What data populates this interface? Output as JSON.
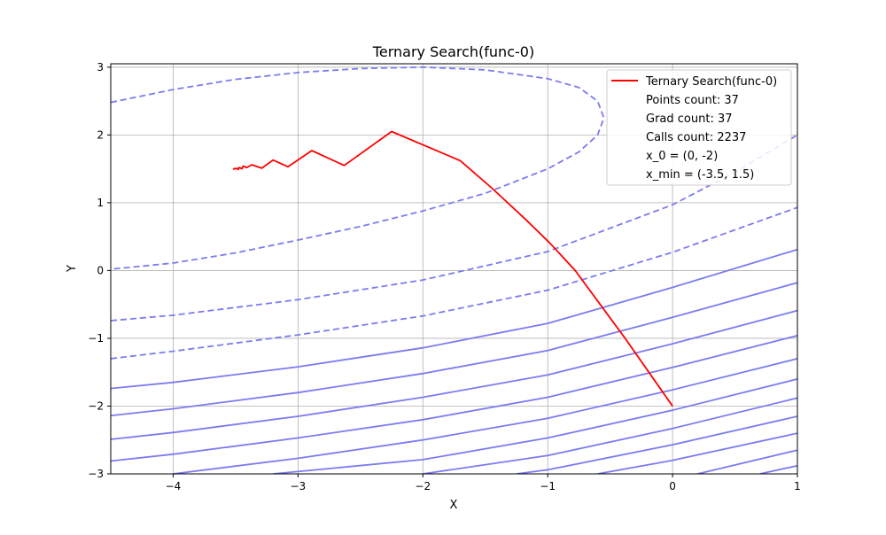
{
  "chart_data": {
    "type": "line",
    "title": "Ternary Search(func-0)",
    "xlabel": "X",
    "ylabel": "Y",
    "xlim": [
      -4.5,
      1
    ],
    "ylim": [
      -3,
      3.05
    ],
    "xticks": [
      -4,
      -3,
      -2,
      -1,
      0,
      1
    ],
    "xtick_labels": [
      "−4",
      "−3",
      "−2",
      "−1",
      "0",
      "1"
    ],
    "yticks": [
      -3,
      -2,
      -1,
      0,
      1,
      2,
      3
    ],
    "ytick_labels": [
      "−3",
      "−2",
      "−1",
      "0",
      "1",
      "2",
      "3"
    ],
    "grid": true,
    "legend_position": "top-right",
    "series": [
      {
        "name": "Ternary Search(func-0)",
        "color": "#ff0000",
        "x": [
          0,
          -0.19,
          -0.38,
          -0.58,
          -0.78,
          -0.98,
          -1.18,
          -1.45,
          -1.7,
          -2.25,
          -2.63,
          -2.89,
          -3.08,
          -3.2,
          -3.29,
          -3.37,
          -3.41,
          -3.44,
          -3.45,
          -3.47,
          -3.48,
          -3.49,
          -3.5,
          -3.51,
          -3.52
        ],
        "y": [
          -2.0,
          -1.5,
          -1.0,
          -0.5,
          0.0,
          0.4,
          0.76,
          1.22,
          1.62,
          2.05,
          1.55,
          1.77,
          1.53,
          1.63,
          1.51,
          1.56,
          1.52,
          1.54,
          1.5,
          1.52,
          1.49,
          1.51,
          1.5,
          1.505,
          1.49
        ]
      }
    ],
    "contours": {
      "color": "#7b7bf2",
      "dashed_levels": [
        {
          "x": [
            -4.5,
            -4.0,
            -3.5,
            -3.0,
            -2.5,
            -2.0,
            -1.5,
            -1.0,
            -0.75,
            -0.6,
            -0.55,
            -0.6,
            -0.75,
            -1.0,
            -1.5,
            -2.0,
            -2.5,
            -3.0,
            -3.5,
            -4.0,
            -4.5
          ],
          "y": [
            2.48,
            2.67,
            2.82,
            2.92,
            2.98,
            3.0,
            2.96,
            2.83,
            2.7,
            2.5,
            2.25,
            2.0,
            1.75,
            1.5,
            1.14,
            0.88,
            0.65,
            0.45,
            0.26,
            0.11,
            0.02
          ]
        },
        {
          "x": [
            -4.5,
            -4.0,
            -3.0,
            -2.0,
            -1.0,
            0.0,
            0.5,
            1.0
          ],
          "y": [
            -0.74,
            -0.66,
            -0.43,
            -0.14,
            0.28,
            0.97,
            1.45,
            2.0
          ]
        },
        {
          "x": [
            -4.5,
            -4.0,
            -3.0,
            -2.0,
            -1.0,
            0.0,
            1.0
          ],
          "y": [
            -1.3,
            -1.19,
            -0.95,
            -0.67,
            -0.29,
            0.27,
            0.93
          ]
        }
      ],
      "solid_levels": [
        {
          "x": [
            -4.5,
            -4.0,
            -3.0,
            -2.0,
            -1.0,
            0.0,
            1.0
          ],
          "y": [
            -1.74,
            -1.65,
            -1.42,
            -1.14,
            -0.78,
            -0.25,
            0.31
          ]
        },
        {
          "x": [
            -4.5,
            -4.0,
            -3.0,
            -2.0,
            -1.0,
            0.0,
            1.0
          ],
          "y": [
            -2.14,
            -2.04,
            -1.8,
            -1.52,
            -1.18,
            -0.69,
            -0.18
          ]
        },
        {
          "x": [
            -4.5,
            -4.0,
            -3.0,
            -2.0,
            -1.0,
            0.0,
            1.0
          ],
          "y": [
            -2.49,
            -2.39,
            -2.15,
            -1.87,
            -1.54,
            -1.08,
            -0.59
          ]
        },
        {
          "x": [
            -4.5,
            -4.0,
            -3.0,
            -2.0,
            -1.0,
            0.0,
            1.0
          ],
          "y": [
            -2.81,
            -2.71,
            -2.47,
            -2.2,
            -1.87,
            -1.43,
            -0.96
          ]
        },
        {
          "x": [
            -4.0,
            -3.0,
            -2.0,
            -1.0,
            0.0,
            1.0
          ],
          "y": [
            -3.0,
            -2.77,
            -2.5,
            -2.18,
            -1.76,
            -1.3
          ]
        },
        {
          "x": [
            -3.2,
            -2.0,
            -1.0,
            0.0,
            1.0
          ],
          "y": [
            -3.0,
            -2.79,
            -2.47,
            -2.06,
            -1.6
          ]
        },
        {
          "x": [
            -2.0,
            -1.0,
            0.0,
            1.0
          ],
          "y": [
            -3.0,
            -2.73,
            -2.33,
            -1.88
          ]
        },
        {
          "x": [
            -1.25,
            -1.0,
            0.0,
            1.0
          ],
          "y": [
            -3.0,
            -2.94,
            -2.57,
            -2.15
          ]
        },
        {
          "x": [
            -0.6,
            0.0,
            1.0
          ],
          "y": [
            -3.0,
            -2.8,
            -2.4
          ]
        },
        {
          "x": [
            0.2,
            1.0
          ],
          "y": [
            -3.0,
            -2.65
          ]
        },
        {
          "x": [
            0.7,
            1.0
          ],
          "y": [
            -3.0,
            -2.88
          ]
        }
      ]
    }
  },
  "legend": {
    "entries": [
      {
        "label": "Ternary Search(func-0)",
        "color": "#ff0000"
      },
      {
        "label": "Points count: 37"
      },
      {
        "label": "Grad count: 37"
      },
      {
        "label": "Calls count: 2237"
      },
      {
        "label": "x_0 = (0, -2)"
      },
      {
        "label": "x_min = (-3.5, 1.5)"
      }
    ]
  }
}
